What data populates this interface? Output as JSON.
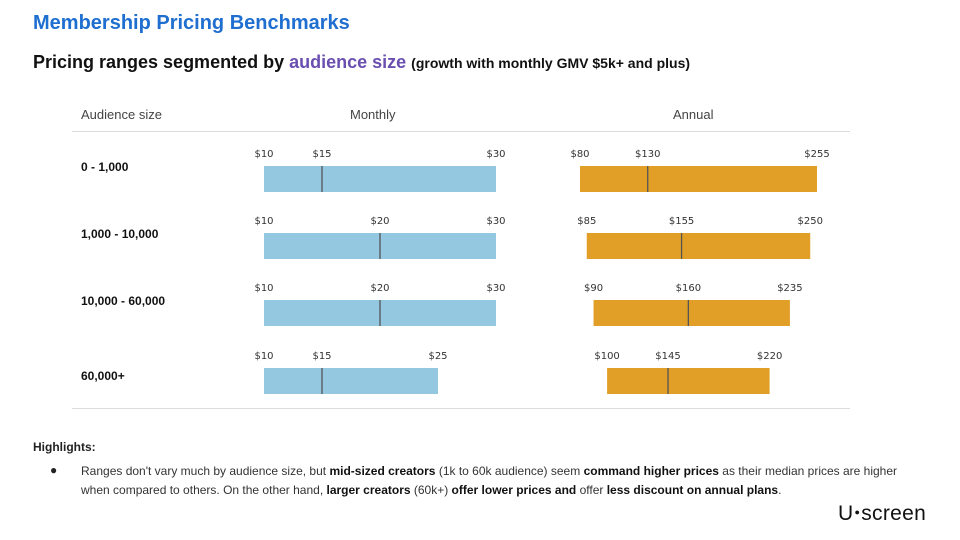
{
  "header": {
    "title": "Membership Pricing Benchmarks",
    "subtitle_main": "Pricing ranges segmented by",
    "subtitle_highlight": "audience size",
    "subtitle_note": "(growth with monthly GMV $5k+ and plus)"
  },
  "columns": {
    "audience": "Audience size",
    "monthly": "Monthly",
    "annual": "Annual"
  },
  "colors": {
    "monthly": "#93c8e0",
    "annual": "#e19f27",
    "median_line": "#555555"
  },
  "chart_data": {
    "type": "range-bar",
    "title": "Pricing ranges segmented by audience size",
    "rows": [
      {
        "label": "0 - 1,000",
        "monthly": {
          "min": 10,
          "median": 15,
          "max": 30,
          "labels": [
            "$10",
            "$15",
            "$30"
          ]
        },
        "annual": {
          "min": 80,
          "median": 130,
          "max": 255,
          "labels": [
            "$80",
            "$130",
            "$255"
          ]
        }
      },
      {
        "label": "1,000 - 10,000",
        "monthly": {
          "min": 10,
          "median": 20,
          "max": 30,
          "labels": [
            "$10",
            "$20",
            "$30"
          ]
        },
        "annual": {
          "min": 85,
          "median": 155,
          "max": 250,
          "labels": [
            "$85",
            "$155",
            "$250"
          ]
        }
      },
      {
        "label": "10,000 - 60,000",
        "monthly": {
          "min": 10,
          "median": 20,
          "max": 30,
          "labels": [
            "$10",
            "$20",
            "$30"
          ]
        },
        "annual": {
          "min": 90,
          "median": 160,
          "max": 235,
          "labels": [
            "$90",
            "$160",
            "$235"
          ]
        }
      },
      {
        "label": "60,000+",
        "monthly": {
          "min": 10,
          "median": 15,
          "max": 25,
          "labels": [
            "$10",
            "$15",
            "$25"
          ]
        },
        "annual": {
          "min": 100,
          "median": 145,
          "max": 220,
          "labels": [
            "$100",
            "$145",
            "$220"
          ]
        }
      }
    ],
    "monthly_range": [
      10,
      30
    ],
    "annual_range": [
      80,
      255
    ]
  },
  "highlights": {
    "heading": "Highlights:",
    "bullet": "●",
    "p1": "Ranges don't vary much by audience size, but ",
    "b1": "mid-sized creators",
    "p2": " (1k to 60k audience) seem ",
    "b2": "command higher prices",
    "p3": " as their median prices are higher when compared to others. On the other hand, ",
    "b3": "larger creators",
    "p4": " (60k+) ",
    "b4": "offer lower prices and",
    "p5": " offer ",
    "b5": "less discount on annual plans",
    "p6": "."
  },
  "logo": {
    "left": "U",
    "dot": "●",
    "right": "screen"
  }
}
